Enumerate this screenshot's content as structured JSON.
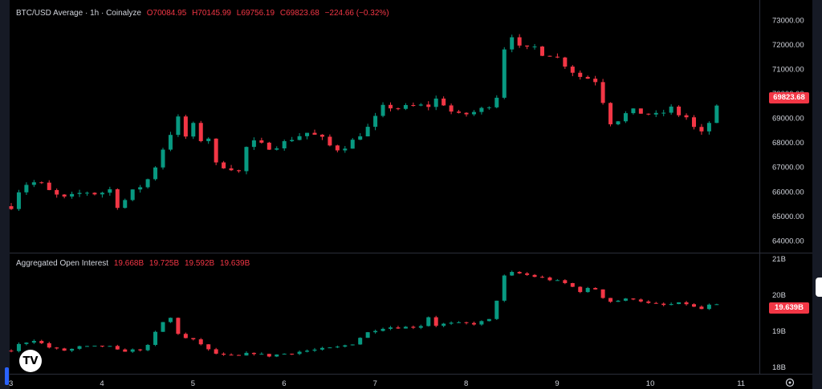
{
  "legend_main": {
    "title": "BTC/USD Average · 1h · Coinalyze",
    "o": "O70084.95",
    "h": "H70145.99",
    "l": "L69756.19",
    "c": "C69823.68",
    "chg": "−224.66 (−0.32%)"
  },
  "legend_oi": {
    "title": "Aggregated Open Interest",
    "v1": "19.668B",
    "v2": "19.725B",
    "v3": "19.592B",
    "v4": "19.639B"
  },
  "price_tag": "69823.68",
  "oi_tag": "19.639B",
  "logo_text": "TV",
  "colors": {
    "up": "#089981",
    "down": "#f23645",
    "bg": "#000000",
    "grid": "#2a2e39",
    "text": "#d1d4dc"
  },
  "chart_data": [
    {
      "type": "candlestick",
      "title": "BTC/USD Average · 1h · Coinalyze",
      "y_ticks": [
        "64000.00",
        "65000.00",
        "66000.00",
        "67000.00",
        "68000.00",
        "69000.00",
        "70000.00",
        "71000.00",
        "72000.00",
        "73000.00"
      ],
      "ylim": [
        63600,
        73300
      ],
      "x_ticks": [
        "3",
        "4",
        "5",
        "6",
        "7",
        "8",
        "9",
        "10",
        "11"
      ],
      "x_tick_days": [
        3,
        4,
        5,
        6,
        7,
        8,
        9,
        10,
        11
      ],
      "grid": false,
      "close_path": [
        [
          3.0,
          65400
        ],
        [
          3.05,
          65900
        ],
        [
          3.15,
          66300
        ],
        [
          3.3,
          66400
        ],
        [
          3.45,
          65900
        ],
        [
          3.6,
          65700
        ],
        [
          3.8,
          66000
        ],
        [
          3.95,
          65900
        ],
        [
          4.1,
          66100
        ],
        [
          4.18,
          65300
        ],
        [
          4.3,
          65900
        ],
        [
          4.45,
          66300
        ],
        [
          4.55,
          66700
        ],
        [
          4.62,
          67400
        ],
        [
          4.7,
          68000
        ],
        [
          4.78,
          68600
        ],
        [
          4.85,
          69100
        ],
        [
          4.92,
          68200
        ],
        [
          5.0,
          68700
        ],
        [
          5.1,
          68000
        ],
        [
          5.2,
          68300
        ],
        [
          5.25,
          67100
        ],
        [
          5.4,
          67000
        ],
        [
          5.5,
          66800
        ],
        [
          5.6,
          68000
        ],
        [
          5.7,
          68000
        ],
        [
          5.8,
          67800
        ],
        [
          5.95,
          67900
        ],
        [
          6.1,
          68200
        ],
        [
          6.25,
          68400
        ],
        [
          6.4,
          68200
        ],
        [
          6.55,
          67700
        ],
        [
          6.7,
          67900
        ],
        [
          6.85,
          68400
        ],
        [
          6.95,
          68700
        ],
        [
          7.0,
          69000
        ],
        [
          7.05,
          69300
        ],
        [
          7.1,
          69500
        ],
        [
          7.25,
          69400
        ],
        [
          7.45,
          69500
        ],
        [
          7.6,
          69500
        ],
        [
          7.7,
          69900
        ],
        [
          7.78,
          69400
        ],
        [
          7.9,
          69100
        ],
        [
          8.05,
          69200
        ],
        [
          8.2,
          69400
        ],
        [
          8.3,
          69700
        ],
        [
          8.35,
          70000
        ],
        [
          8.4,
          71700
        ],
        [
          8.45,
          72200
        ],
        [
          8.5,
          72400
        ],
        [
          8.55,
          71900
        ],
        [
          8.65,
          71800
        ],
        [
          8.75,
          71900
        ],
        [
          8.85,
          71600
        ],
        [
          8.95,
          71600
        ],
        [
          9.05,
          71300
        ],
        [
          9.2,
          70800
        ],
        [
          9.3,
          70600
        ],
        [
          9.4,
          70700
        ],
        [
          9.5,
          69700
        ],
        [
          9.55,
          68800
        ],
        [
          9.65,
          68900
        ],
        [
          9.8,
          69300
        ],
        [
          9.95,
          69200
        ],
        [
          10.1,
          69100
        ],
        [
          10.25,
          69400
        ],
        [
          10.35,
          69100
        ],
        [
          10.45,
          69000
        ],
        [
          10.55,
          68200
        ],
        [
          10.65,
          68700
        ],
        [
          10.75,
          69400
        ],
        [
          10.8,
          70000
        ],
        [
          10.83,
          69824
        ]
      ]
    },
    {
      "type": "candlestick",
      "title": "Aggregated Open Interest",
      "y_ticks": [
        "18B",
        "19B",
        "20B",
        "21B"
      ],
      "ylim": [
        17.9,
        21.05
      ],
      "last_value": "19.639B",
      "close_path": [
        [
          3.0,
          18.45
        ],
        [
          3.1,
          18.65
        ],
        [
          3.25,
          18.75
        ],
        [
          3.45,
          18.5
        ],
        [
          3.6,
          18.45
        ],
        [
          3.75,
          18.55
        ],
        [
          3.9,
          18.55
        ],
        [
          4.05,
          18.6
        ],
        [
          4.15,
          18.45
        ],
        [
          4.3,
          18.45
        ],
        [
          4.45,
          18.5
        ],
        [
          4.55,
          18.65
        ],
        [
          4.6,
          19.1
        ],
        [
          4.7,
          19.3
        ],
        [
          4.75,
          19.35
        ],
        [
          4.8,
          19.0
        ],
        [
          4.9,
          18.8
        ],
        [
          5.05,
          18.7
        ],
        [
          5.2,
          18.4
        ],
        [
          5.35,
          18.3
        ],
        [
          5.5,
          18.3
        ],
        [
          5.65,
          18.4
        ],
        [
          5.8,
          18.3
        ],
        [
          5.95,
          18.35
        ],
        [
          6.1,
          18.4
        ],
        [
          6.25,
          18.45
        ],
        [
          6.45,
          18.5
        ],
        [
          6.6,
          18.55
        ],
        [
          6.75,
          18.65
        ],
        [
          6.85,
          18.85
        ],
        [
          6.95,
          19.0
        ],
        [
          7.1,
          19.1
        ],
        [
          7.25,
          19.1
        ],
        [
          7.4,
          19.1
        ],
        [
          7.5,
          19.15
        ],
        [
          7.58,
          19.4
        ],
        [
          7.65,
          19.15
        ],
        [
          7.8,
          19.2
        ],
        [
          7.95,
          19.2
        ],
        [
          8.1,
          19.2
        ],
        [
          8.25,
          19.3
        ],
        [
          8.32,
          19.7
        ],
        [
          8.38,
          20.4
        ],
        [
          8.45,
          20.6
        ],
        [
          8.55,
          20.6
        ],
        [
          8.75,
          20.5
        ],
        [
          8.95,
          20.4
        ],
        [
          9.1,
          20.3
        ],
        [
          9.25,
          20.1
        ],
        [
          9.4,
          20.2
        ],
        [
          9.55,
          19.8
        ],
        [
          9.7,
          19.85
        ],
        [
          9.85,
          19.9
        ],
        [
          10.0,
          19.75
        ],
        [
          10.15,
          19.7
        ],
        [
          10.3,
          19.75
        ],
        [
          10.45,
          19.75
        ],
        [
          10.55,
          19.55
        ],
        [
          10.65,
          19.7
        ],
        [
          10.75,
          19.7
        ],
        [
          10.83,
          19.64
        ]
      ]
    }
  ]
}
